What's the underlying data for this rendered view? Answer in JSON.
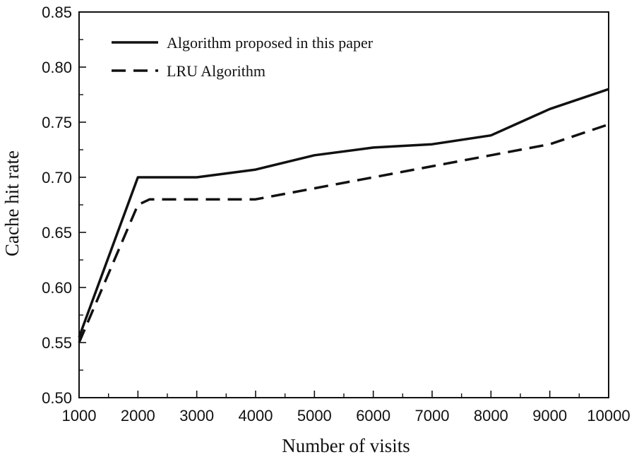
{
  "chart_data": {
    "type": "line",
    "title": "",
    "xlabel": "Number of visits",
    "ylabel": "Cache hit rate",
    "xlim": [
      1000,
      10000
    ],
    "ylim": [
      0.5,
      0.85
    ],
    "xticks": [
      1000,
      2000,
      3000,
      4000,
      5000,
      6000,
      7000,
      8000,
      9000,
      10000
    ],
    "xtick_labels": [
      "1000",
      "2000",
      "3000",
      "4000",
      "5000",
      "6000",
      "7000",
      "8000",
      "9000",
      "10000"
    ],
    "yticks": [
      0.5,
      0.55,
      0.6,
      0.65,
      0.7,
      0.75,
      0.8,
      0.85
    ],
    "ytick_labels": [
      "0.50",
      "0.55",
      "0.60",
      "0.65",
      "0.70",
      "0.75",
      "0.80",
      "0.85"
    ],
    "grid": false,
    "legend_position": "top-left",
    "series": [
      {
        "name": "Algorithm proposed in this paper",
        "style": "solid",
        "color": "#111111",
        "x": [
          1000,
          2000,
          3000,
          4000,
          5000,
          6000,
          7000,
          8000,
          8500,
          9000,
          10000
        ],
        "y": [
          0.555,
          0.7,
          0.7,
          0.707,
          0.72,
          0.727,
          0.73,
          0.738,
          0.75,
          0.762,
          0.78
        ]
      },
      {
        "name": "LRU Algorithm",
        "style": "dashed",
        "color": "#111111",
        "x": [
          1000,
          2000,
          2200,
          3000,
          4000,
          5000,
          6000,
          7000,
          8000,
          9000,
          10000
        ],
        "y": [
          0.55,
          0.675,
          0.68,
          0.68,
          0.68,
          0.69,
          0.7,
          0.71,
          0.72,
          0.73,
          0.748
        ]
      }
    ]
  }
}
